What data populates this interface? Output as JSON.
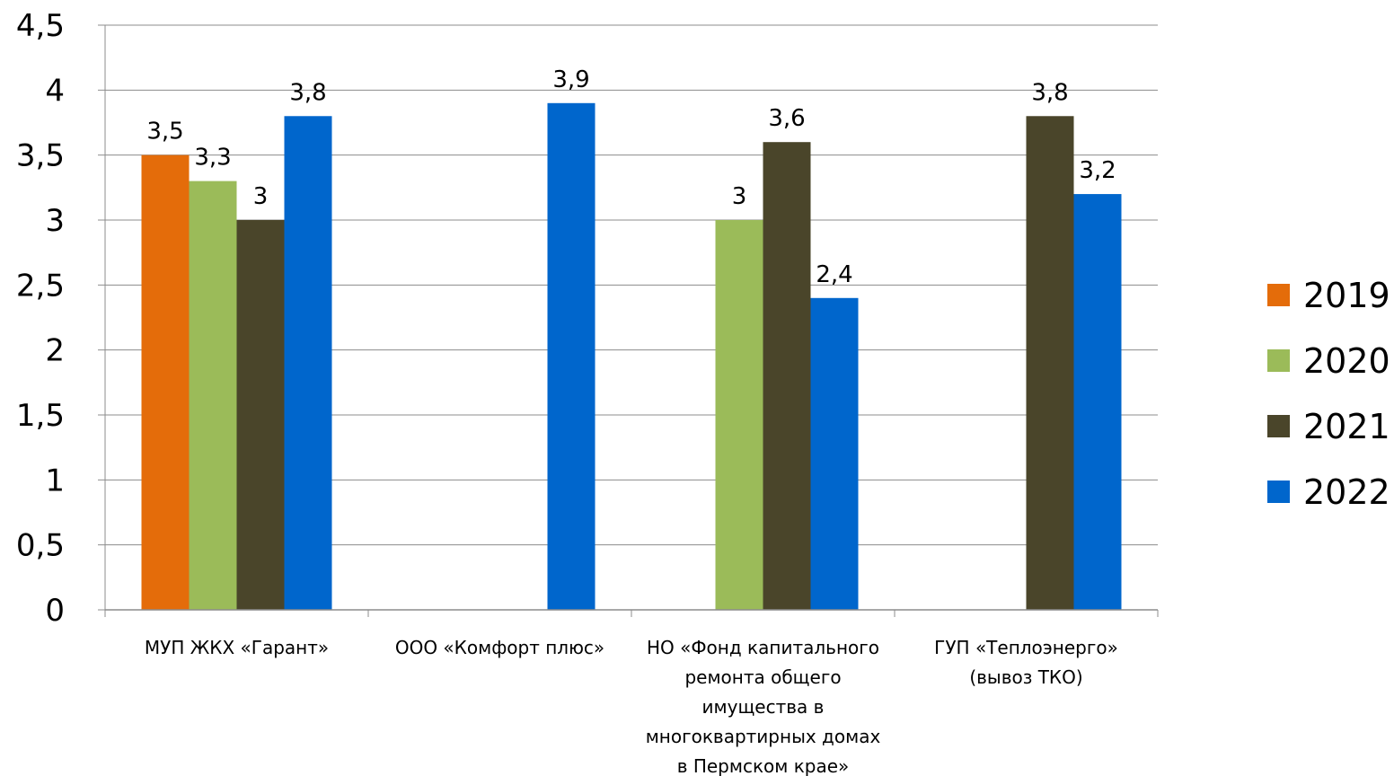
{
  "chart_data": {
    "type": "bar",
    "categories": [
      [
        "МУП ЖКХ «Гарант»"
      ],
      [
        "ООО «Комфорт плюс»"
      ],
      [
        "НО «Фонд капитального",
        "ремонта общего",
        "имущества в",
        "многоквартирных домах",
        "в Пермском крае»"
      ],
      [
        "ГУП «Теплоэнерго»",
        "(вывоз ТКО)"
      ]
    ],
    "series": [
      {
        "name": "2019",
        "color": "#E46C0A",
        "values": [
          3.5,
          null,
          null,
          null
        ],
        "labels": [
          "3,5",
          null,
          null,
          null
        ]
      },
      {
        "name": "2020",
        "color": "#9BBB59",
        "values": [
          3.3,
          null,
          3.0,
          null
        ],
        "labels": [
          "3,3",
          null,
          "3",
          null
        ]
      },
      {
        "name": "2021",
        "color": "#4A452A",
        "values": [
          3.0,
          null,
          3.6,
          3.8
        ],
        "labels": [
          "3",
          null,
          "3,6",
          "3,8"
        ]
      },
      {
        "name": "2022",
        "color": "#0066CC",
        "values": [
          3.8,
          3.9,
          2.4,
          3.2
        ],
        "labels": [
          "3,8",
          "3,9",
          "2,4",
          "3,2"
        ]
      }
    ],
    "ylim": [
      0,
      4.5
    ],
    "yticks": [
      0,
      0.5,
      1,
      1.5,
      2,
      2.5,
      3,
      3.5,
      4,
      4.5
    ],
    "ytick_labels": [
      "0",
      "0,5",
      "1",
      "1,5",
      "2",
      "2,5",
      "3",
      "3,5",
      "4",
      "4,5"
    ],
    "grid": true,
    "legend": "right"
  }
}
